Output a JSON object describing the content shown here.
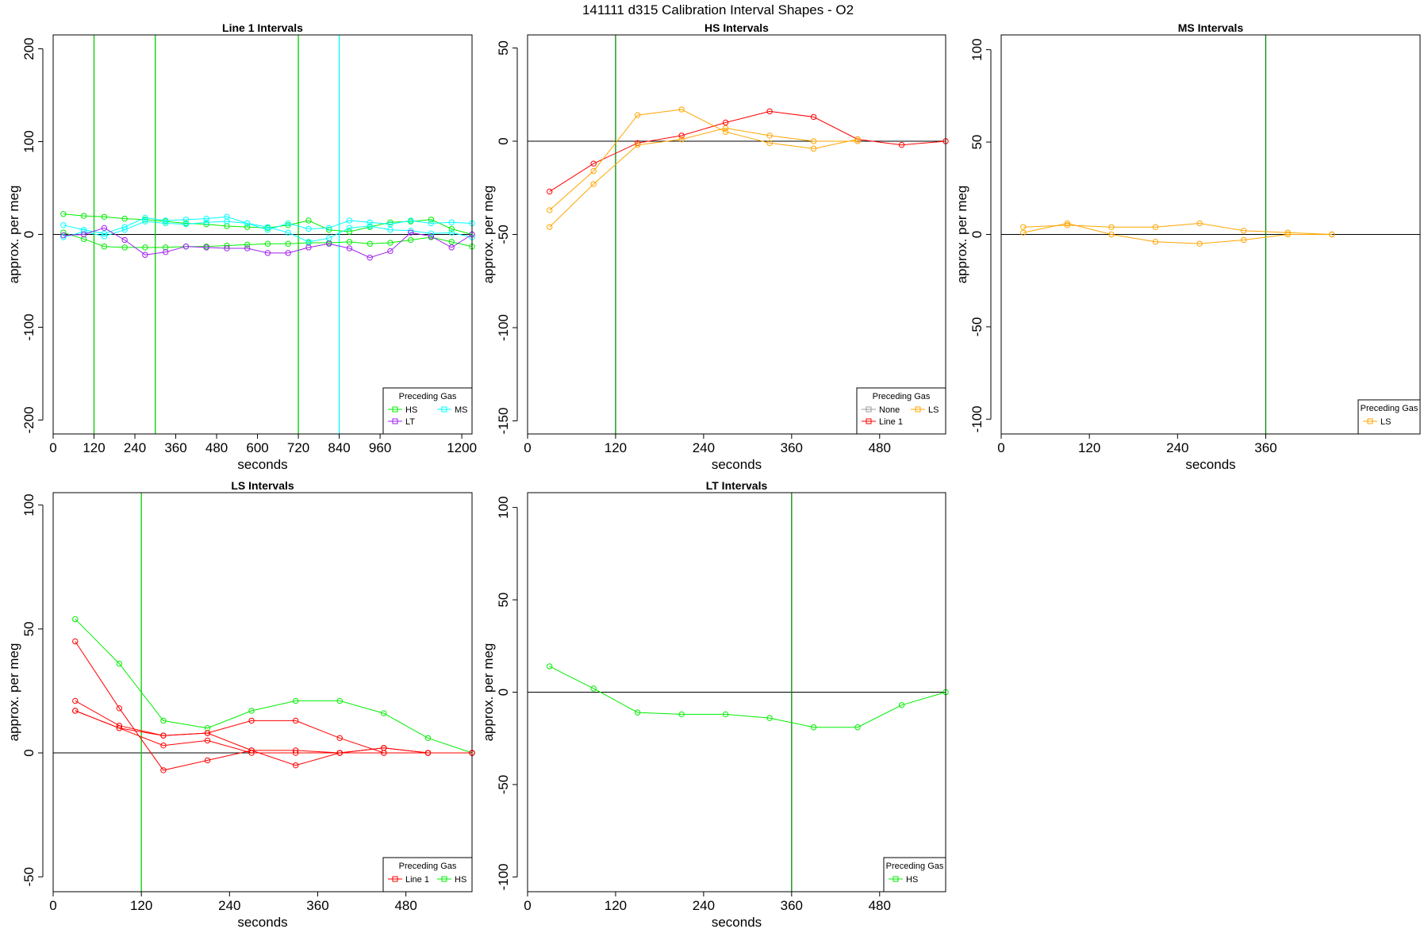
{
  "figure": {
    "title": "141111   d315   Calibration Interval Shapes - O2"
  },
  "colors": {
    "None": "#999999",
    "Line 1": "#ff0000",
    "HS": "#00ee00",
    "MS": "#00ffff",
    "LS": "#ffa500",
    "LT": "#a020f0",
    "zero_line": "#000000",
    "vline_green": "#00cc00",
    "vline_dark": "#008800",
    "vline_cyan": "#00ffff"
  },
  "chart_data": [
    {
      "type": "line",
      "title": "Line 1 Intervals",
      "xlabel": "seconds",
      "ylabel": "approx. per meg",
      "xlim": [
        0,
        1230
      ],
      "ylim": [
        -215,
        215
      ],
      "xticks": [
        0,
        120,
        240,
        360,
        480,
        600,
        720,
        840,
        960,
        1200
      ],
      "yticks": [
        -200,
        -100,
        0,
        100,
        200
      ],
      "vlines": [
        {
          "x": 120,
          "color": "vline_green"
        },
        {
          "x": 300,
          "color": "vline_green"
        },
        {
          "x": 720,
          "color": "vline_green"
        },
        {
          "x": 840,
          "color": "vline_cyan"
        }
      ],
      "legend": {
        "title": "Preceding Gas",
        "position": "bottom-right",
        "entries": [
          "HS",
          "LT",
          "MS"
        ]
      },
      "series": [
        {
          "gas": "HS",
          "x": [
            30,
            90,
            150,
            210,
            270,
            330,
            390,
            450,
            510,
            570,
            630,
            690,
            750,
            810,
            870,
            930,
            990,
            1050,
            1110,
            1170,
            1230
          ],
          "y": [
            22,
            20,
            19,
            17,
            16,
            14,
            12,
            11,
            9,
            8,
            7,
            10,
            15,
            5,
            3,
            8,
            13,
            14,
            16,
            6,
            0
          ]
        },
        {
          "gas": "HS",
          "x": [
            30,
            90,
            150,
            210,
            270,
            330,
            390,
            450,
            510,
            570,
            630,
            690,
            750,
            810,
            870,
            930,
            990,
            1050,
            1110,
            1170,
            1230
          ],
          "y": [
            2,
            -5,
            -13,
            -14,
            -14,
            -14,
            -13,
            -13,
            -12,
            -11,
            -10,
            -10,
            -9,
            -9,
            -8,
            -10,
            -9,
            -6,
            -3,
            -8,
            -13
          ]
        },
        {
          "gas": "MS",
          "x": [
            30,
            90,
            150,
            210,
            270,
            330,
            390,
            450,
            510,
            570,
            630,
            690,
            750,
            810,
            870,
            930,
            990,
            1050,
            1110,
            1170,
            1230
          ],
          "y": [
            10,
            5,
            1,
            8,
            18,
            15,
            16,
            17,
            19,
            12,
            5,
            12,
            6,
            7,
            15,
            13,
            11,
            15,
            12,
            13,
            12
          ]
        },
        {
          "gas": "MS",
          "x": [
            30,
            90,
            150,
            210,
            270,
            330,
            390,
            450,
            510,
            570,
            630,
            690,
            750,
            810,
            870,
            930,
            990,
            1050,
            1110,
            1170,
            1230
          ],
          "y": [
            -3,
            3,
            -2,
            5,
            14,
            12,
            11,
            13,
            14,
            12,
            8,
            2,
            -8,
            -4,
            7,
            9,
            5,
            4,
            1,
            2,
            -3
          ]
        },
        {
          "gas": "LT",
          "x": [
            30,
            90,
            150,
            210,
            270,
            330,
            390,
            450,
            510,
            570,
            630,
            690,
            750,
            810,
            870,
            930,
            990,
            1050,
            1110,
            1170,
            1230
          ],
          "y": [
            -1,
            0,
            7,
            -6,
            -22,
            -19,
            -13,
            -14,
            -15,
            -15,
            -20,
            -20,
            -14,
            -10,
            -15,
            -25,
            -18,
            2,
            -2,
            -14,
            0
          ]
        }
      ]
    },
    {
      "type": "line",
      "title": "HS Intervals",
      "xlabel": "seconds",
      "ylabel": "approx. per meg",
      "xlim": [
        0,
        570
      ],
      "ylim": [
        -157,
        57
      ],
      "xticks": [
        0,
        120,
        240,
        360,
        480
      ],
      "yticks": [
        -150,
        -100,
        -50,
        0,
        50
      ],
      "vlines": [
        {
          "x": 120,
          "color": "vline_dark"
        }
      ],
      "legend": {
        "title": "Preceding Gas",
        "position": "bottom-right",
        "entries": [
          "None",
          "Line 1",
          "LS"
        ]
      },
      "series": [
        {
          "gas": "Line 1",
          "x": [
            30,
            90,
            150,
            210,
            270,
            330,
            390,
            450,
            510,
            570
          ],
          "y": [
            -27,
            -12,
            -1,
            3,
            10,
            16,
            13,
            1,
            -2,
            0
          ]
        },
        {
          "gas": "LS",
          "x": [
            30,
            90,
            150,
            210,
            270,
            330,
            390,
            450
          ],
          "y": [
            -37,
            -16,
            14,
            17,
            5,
            -1,
            -4,
            1
          ]
        },
        {
          "gas": "LS",
          "x": [
            30,
            90,
            150,
            210,
            270,
            330,
            390,
            450
          ],
          "y": [
            -46,
            -23,
            -2,
            1,
            7,
            3,
            0,
            0
          ]
        }
      ]
    },
    {
      "type": "line",
      "title": "MS Intervals",
      "xlabel": "seconds",
      "ylabel": "approx. per meg",
      "xlim": [
        0,
        570
      ],
      "ylim": [
        -108,
        108
      ],
      "xticks": [
        0,
        120,
        240,
        360
      ],
      "yticks": [
        -100,
        -50,
        0,
        50,
        100
      ],
      "vlines": [
        {
          "x": 360,
          "color": "vline_dark"
        }
      ],
      "legend": {
        "title": "Preceding Gas",
        "position": "bottom-right",
        "entries": [
          "LS"
        ]
      },
      "series": [
        {
          "gas": "LS",
          "x": [
            30,
            90,
            150,
            210,
            270,
            330,
            390,
            450
          ],
          "y": [
            4,
            5,
            4,
            4,
            6,
            2,
            1,
            0
          ]
        },
        {
          "gas": "LS",
          "x": [
            30,
            90,
            150,
            210,
            270,
            330,
            390,
            450
          ],
          "y": [
            1,
            6,
            0,
            -4,
            -5,
            -3,
            0,
            0
          ]
        }
      ]
    },
    {
      "type": "line",
      "title": "LS Intervals",
      "xlabel": "seconds",
      "ylabel": "approx. per meg",
      "xlim": [
        0,
        570
      ],
      "ylim": [
        -56,
        105
      ],
      "xticks": [
        0,
        120,
        240,
        360,
        480
      ],
      "yticks": [
        -50,
        0,
        50,
        100
      ],
      "vlines": [
        {
          "x": 120,
          "color": "vline_green"
        }
      ],
      "legend": {
        "title": "Preceding Gas",
        "position": "bottom-right",
        "entries": [
          "Line 1",
          "HS"
        ]
      },
      "series": [
        {
          "gas": "HS",
          "x": [
            30,
            90,
            150,
            210,
            270,
            330,
            390,
            450,
            510,
            570
          ],
          "y": [
            54,
            36,
            13,
            10,
            17,
            21,
            21,
            16,
            6,
            0
          ]
        },
        {
          "gas": "Line 1",
          "x": [
            30,
            90,
            150,
            210,
            270,
            330,
            390,
            450,
            510,
            570
          ],
          "y": [
            45,
            18,
            -7,
            -3,
            1,
            1,
            0,
            2,
            0,
            0
          ]
        },
        {
          "gas": "Line 1",
          "x": [
            30,
            90,
            150,
            210,
            270,
            330,
            390,
            450,
            510,
            570
          ],
          "y": [
            21,
            11,
            7,
            8,
            1,
            -5,
            0,
            2,
            0,
            0
          ]
        },
        {
          "gas": "Line 1",
          "x": [
            30,
            90,
            150,
            210,
            270,
            330,
            390,
            450,
            510,
            570
          ],
          "y": [
            17,
            10,
            3,
            5,
            0,
            0,
            0,
            0,
            0,
            0
          ]
        },
        {
          "gas": "Line 1",
          "x": [
            30,
            90,
            150,
            210,
            270,
            330,
            390,
            450,
            510,
            570
          ],
          "y": [
            17,
            10,
            7,
            8,
            13,
            13,
            6,
            0,
            0,
            0
          ]
        }
      ]
    },
    {
      "type": "line",
      "title": "LT Intervals",
      "xlabel": "seconds",
      "ylabel": "approx. per meg",
      "xlim": [
        0,
        570
      ],
      "ylim": [
        -108,
        108
      ],
      "xticks": [
        0,
        120,
        240,
        360,
        480
      ],
      "yticks": [
        -100,
        -50,
        0,
        50,
        100
      ],
      "vlines": [
        {
          "x": 360,
          "color": "vline_dark"
        }
      ],
      "legend": {
        "title": "Preceding Gas",
        "position": "bottom-right",
        "entries": [
          "HS"
        ]
      },
      "series": [
        {
          "gas": "HS",
          "x": [
            30,
            90,
            150,
            210,
            270,
            330,
            390,
            450,
            510,
            570
          ],
          "y": [
            14,
            2,
            -11,
            -12,
            -12,
            -14,
            -19,
            -19,
            -7,
            0
          ]
        }
      ]
    }
  ]
}
